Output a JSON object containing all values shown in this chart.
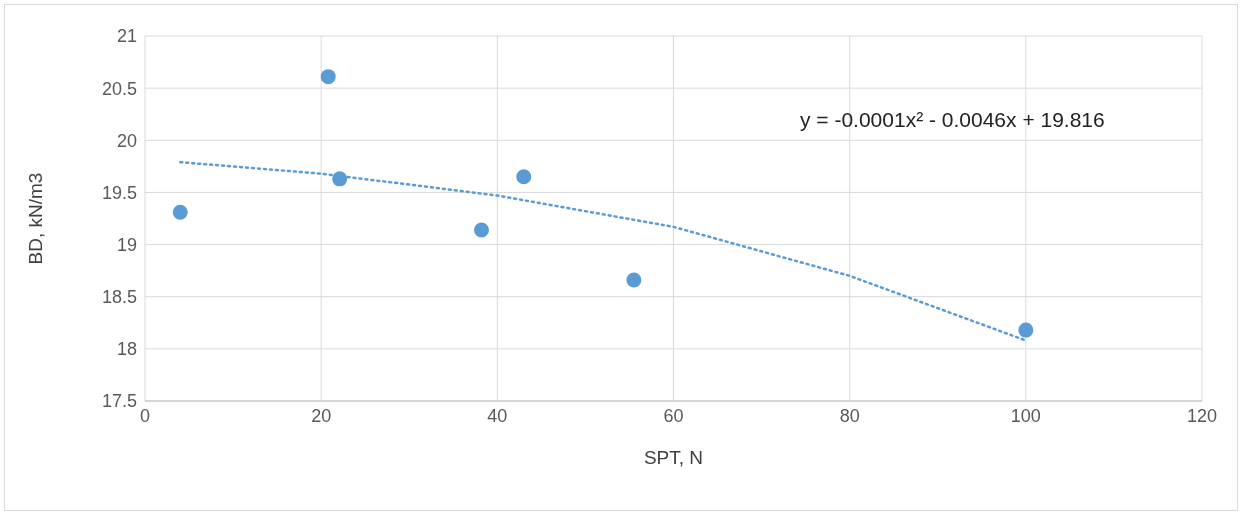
{
  "chart_data": {
    "type": "scatter",
    "xlabel": "SPT, N",
    "ylabel": "BD, kN/m3",
    "x": [
      4.0,
      20.8,
      22.1,
      38.2,
      43.0,
      55.5,
      100.0
    ],
    "series": [
      {
        "color": "#5b9bd5",
        "marker": "circle",
        "values": [
          19.31,
          20.61,
          19.63,
          19.14,
          19.65,
          18.66,
          18.18
        ]
      },
      {
        "type": "line",
        "color": "#5b9bd5",
        "line_style": "dotted",
        "marker": "none",
        "x": [
          4,
          20,
          40,
          60,
          80,
          100
        ],
        "values": [
          19.79,
          19.68,
          19.47,
          19.17,
          18.7,
          18.08
        ]
      }
    ],
    "annotations": [
      "y = -0.0001x² - 0.0046x + 19.816"
    ],
    "xlim": [
      0,
      120
    ],
    "xticks": [
      0,
      20,
      40,
      60,
      80,
      100,
      120
    ],
    "ylim": [
      17.5,
      21
    ],
    "yticks": [
      17.5,
      18,
      18.5,
      19,
      19.5,
      20,
      20.5,
      21
    ],
    "grid": true,
    "legend": false
  }
}
